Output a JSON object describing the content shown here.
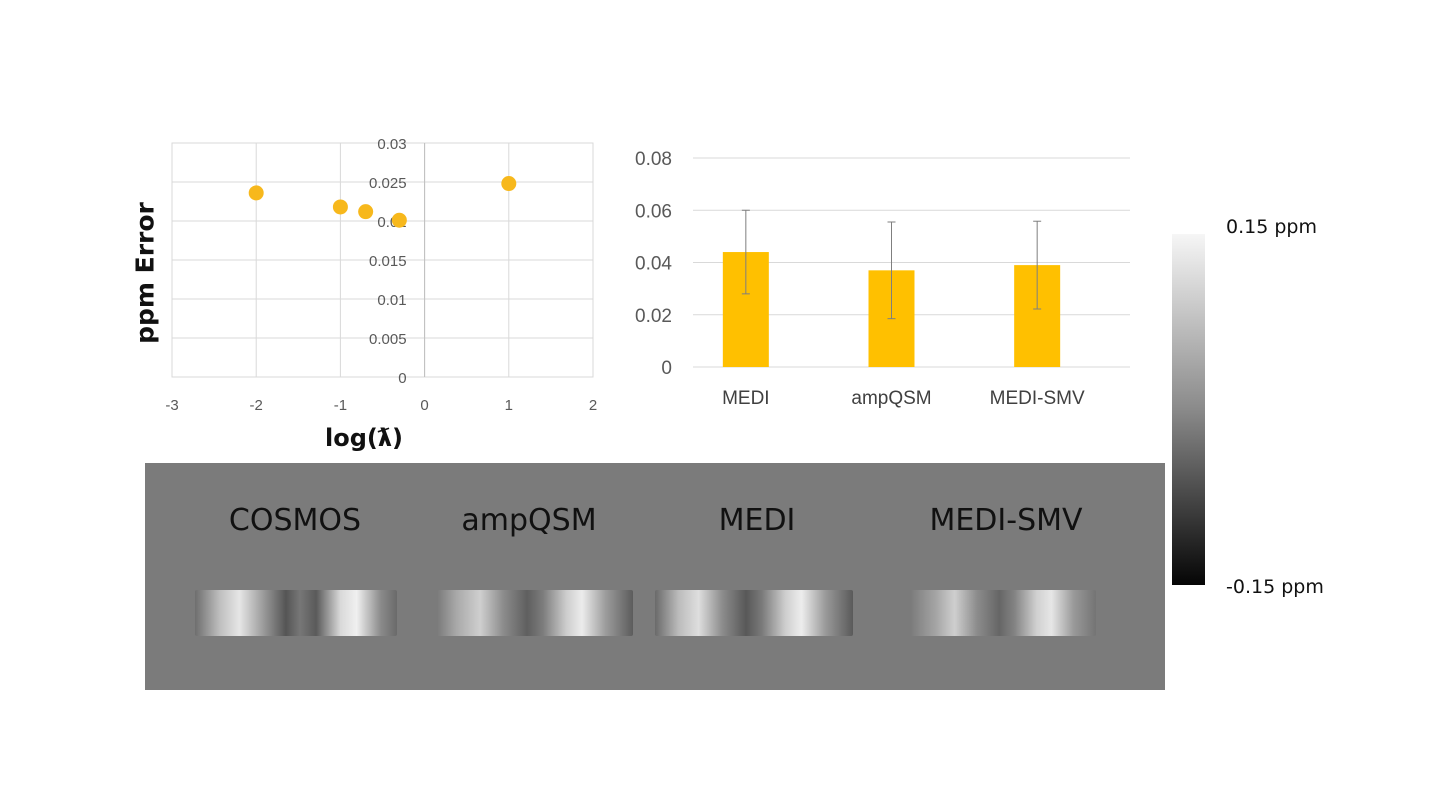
{
  "chart_data": [
    {
      "type": "scatter",
      "xlabel": "log(ƛ)",
      "ylabel": "ppm Error",
      "xlim": [
        -3,
        2
      ],
      "ylim": [
        0,
        0.03
      ],
      "x_ticks": [
        "-3",
        "-2",
        "-1",
        "0",
        "1",
        "2"
      ],
      "y_ticks": [
        "0",
        "0.005",
        "0.01",
        "0.015",
        "0.02",
        "0.025",
        "0.03"
      ],
      "points": [
        {
          "x": -2,
          "y": 0.0236
        },
        {
          "x": -1,
          "y": 0.0218
        },
        {
          "x": -0.7,
          "y": 0.0212
        },
        {
          "x": -0.3,
          "y": 0.0201
        },
        {
          "x": 1,
          "y": 0.0248
        }
      ],
      "grid": true,
      "marker_color": "#f7b81c"
    },
    {
      "type": "bar",
      "categories": [
        "MEDI",
        "ampQSM",
        "MEDI-SMV"
      ],
      "values": [
        0.044,
        0.037,
        0.039
      ],
      "error": [
        0.016,
        0.0185,
        0.0168
      ],
      "ylim": [
        0,
        0.08
      ],
      "y_ticks": [
        "0",
        "0.02",
        "0.04",
        "0.06",
        "0.08"
      ],
      "grid": true,
      "bar_color": "#ffc000"
    }
  ],
  "panel": {
    "labels": [
      "COSMOS",
      "ampQSM",
      "MEDI",
      "MEDI-SMV"
    ],
    "background": "#7b7b7b"
  },
  "colorbar": {
    "max_label": "0.15 ppm",
    "min_label": "-0.15 ppm"
  }
}
